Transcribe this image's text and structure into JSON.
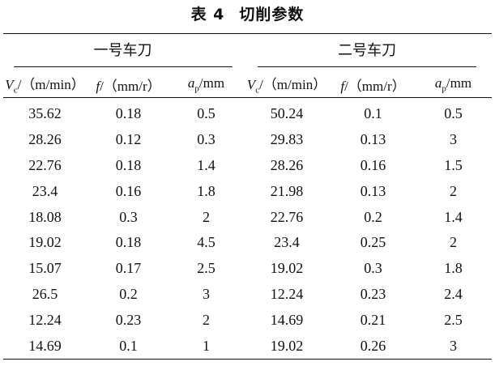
{
  "caption": {
    "number": "表 4",
    "title": "切削参数"
  },
  "groups": [
    {
      "label": "一号车刀"
    },
    {
      "label": "二号车刀"
    }
  ],
  "headers": [
    {
      "symbol": "V",
      "sub": "c",
      "unit": "/（m/min）"
    },
    {
      "symbol": "f",
      "sub": "",
      "unit": "/（mm/r）"
    },
    {
      "symbol": "a",
      "sub": "p",
      "unit": "/mm"
    },
    {
      "symbol": "V",
      "sub": "c",
      "unit": "/（m/min）"
    },
    {
      "symbol": "f",
      "sub": "",
      "unit": "/（mm/r）"
    },
    {
      "symbol": "a",
      "sub": "p",
      "unit": "/mm"
    }
  ],
  "rows": [
    [
      "35.62",
      "0.18",
      "0.5",
      "50.24",
      "0.1",
      "0.5"
    ],
    [
      "28.26",
      "0.12",
      "0.3",
      "29.83",
      "0.13",
      "3"
    ],
    [
      "22.76",
      "0.18",
      "1.4",
      "28.26",
      "0.16",
      "1.5"
    ],
    [
      "23.4",
      "0.16",
      "1.8",
      "21.98",
      "0.13",
      "2"
    ],
    [
      "18.08",
      "0.3",
      "2",
      "22.76",
      "0.2",
      "1.4"
    ],
    [
      "19.02",
      "0.18",
      "4.5",
      "23.4",
      "0.25",
      "2"
    ],
    [
      "15.07",
      "0.17",
      "2.5",
      "19.02",
      "0.3",
      "1.8"
    ],
    [
      "26.5",
      "0.2",
      "3",
      "12.24",
      "0.23",
      "2.4"
    ],
    [
      "12.24",
      "0.23",
      "2",
      "14.69",
      "0.21",
      "2.5"
    ],
    [
      "14.69",
      "0.1",
      "1",
      "19.02",
      "0.26",
      "3"
    ]
  ]
}
